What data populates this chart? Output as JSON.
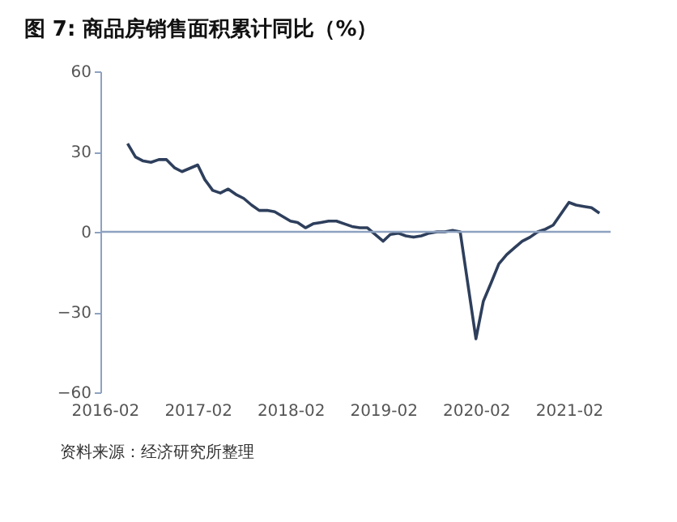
{
  "chart_data": {
    "type": "line",
    "title": "图 7: 商品房销售面积累计同比（%）",
    "annotations": [
      "资料来源：经济研究所整理"
    ],
    "x": [
      "2016-05",
      "2016-06",
      "2016-07",
      "2016-08",
      "2016-09",
      "2016-10",
      "2016-11",
      "2016-12",
      "2017-02",
      "2017-03",
      "2017-04",
      "2017-05",
      "2017-06",
      "2017-07",
      "2017-08",
      "2017-09",
      "2017-10",
      "2017-11",
      "2017-12",
      "2018-02",
      "2018-03",
      "2018-04",
      "2018-05",
      "2018-06",
      "2018-07",
      "2018-08",
      "2018-09",
      "2018-10",
      "2018-11",
      "2018-12",
      "2019-02",
      "2019-03",
      "2019-04",
      "2019-05",
      "2019-06",
      "2019-07",
      "2019-08",
      "2019-09",
      "2019-10",
      "2019-11",
      "2019-12",
      "2020-02",
      "2020-03",
      "2020-04",
      "2020-05",
      "2020-06",
      "2020-07",
      "2020-08",
      "2020-09",
      "2020-10",
      "2020-11",
      "2020-12",
      "2021-02",
      "2021-03",
      "2021-04",
      "2021-05",
      "2021-06"
    ],
    "series": [
      {
        "color": "#2e3f5c",
        "values": [
          33,
          28,
          26.5,
          26,
          27,
          27,
          24,
          22.5,
          25,
          19.5,
          15.5,
          14.5,
          16,
          14,
          12.5,
          10,
          8,
          8,
          7.5,
          4,
          3.5,
          1.5,
          3,
          3.5,
          4,
          4,
          3,
          2,
          1.5,
          1.5,
          -3.5,
          -1,
          -0.5,
          -1.5,
          -2,
          -1.5,
          -0.5,
          0,
          0,
          0.5,
          0,
          -40,
          -26,
          -19,
          -12,
          -8.5,
          -6,
          -3.5,
          -2,
          0,
          1,
          2.5,
          11,
          10,
          9.5,
          9,
          7
        ]
      }
    ],
    "xlim": [
      "2016-01-15",
      "2021-07-15"
    ],
    "xticks": [
      {
        "value": "2016-02",
        "label": "2016-02"
      },
      {
        "value": "2017-02",
        "label": "2017-02"
      },
      {
        "value": "2018-02",
        "label": "2018-02"
      },
      {
        "value": "2019-02",
        "label": "2019-02"
      },
      {
        "value": "2020-02",
        "label": "2020-02"
      },
      {
        "value": "2021-02",
        "label": "2021-02"
      }
    ],
    "ylim": [
      -60,
      60
    ],
    "yticks": [
      -60,
      -30,
      0,
      30,
      60
    ],
    "ref_lines": [
      {
        "axis": "y",
        "value": 0,
        "color": "#8ea2c0"
      }
    ],
    "grid": false,
    "marker": "none",
    "line_style": "solid"
  }
}
